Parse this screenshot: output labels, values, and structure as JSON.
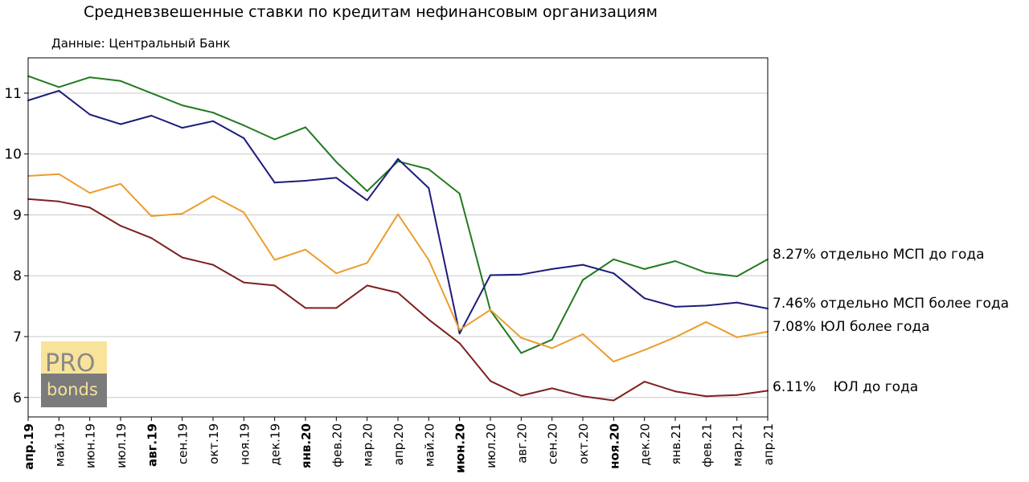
{
  "title": "Средневзвешенные ставки по кредитам нефинансовым организациям",
  "subtitle": "Данные: Центральный Банк",
  "logo": {
    "line1": "PRO",
    "line2": "bonds"
  },
  "chart_data": {
    "type": "line",
    "categories": [
      "апр.19",
      "май.19",
      "июн.19",
      "июл.19",
      "авг.19",
      "сен.19",
      "окт.19",
      "ноя.19",
      "дек.19",
      "янв.20",
      "фев.20",
      "мар.20",
      "апр.20",
      "май.20",
      "июн.20",
      "июл.20",
      "авг.20",
      "сен.20",
      "окт.20",
      "ноя.20",
      "дек.20",
      "янв.21",
      "фев.21",
      "мар.21",
      "апр.21"
    ],
    "bold_categories": [
      "апр.19",
      "авг.19",
      "янв.20",
      "июн.20",
      "ноя.20"
    ],
    "yticks": [
      6,
      7,
      8,
      9,
      10,
      11
    ],
    "ylim": [
      5.68,
      11.58
    ],
    "grid": true,
    "series": [
      {
        "name": "отдельно МСП до года",
        "end_label": "8.27% отдельно МСП до года",
        "color": "#217a21",
        "values": [
          11.28,
          11.1,
          11.26,
          11.2,
          11.0,
          10.8,
          10.68,
          10.47,
          10.24,
          10.44,
          9.87,
          9.39,
          9.88,
          9.75,
          9.35,
          7.43,
          6.73,
          6.95,
          7.93,
          8.27,
          8.11,
          8.24,
          8.05,
          7.99,
          8.27
        ]
      },
      {
        "name": "отдельно МСП более года",
        "end_label": "7.46% отдельно МСП более года",
        "color": "#1c1c7a",
        "values": [
          10.88,
          11.04,
          10.65,
          10.49,
          10.63,
          10.43,
          10.54,
          10.26,
          9.53,
          9.56,
          9.61,
          9.24,
          9.92,
          9.44,
          7.05,
          8.01,
          8.02,
          8.11,
          8.18,
          8.04,
          7.63,
          7.49,
          7.51,
          7.56,
          7.46
        ]
      },
      {
        "name": "ЮЛ более года",
        "end_label": "7.08% ЮЛ более года",
        "color": "#eb9d2d",
        "values": [
          9.64,
          9.67,
          9.36,
          9.51,
          8.98,
          9.02,
          9.31,
          9.04,
          8.26,
          8.43,
          8.04,
          8.21,
          9.01,
          8.26,
          7.11,
          7.44,
          6.98,
          6.81,
          7.04,
          6.59,
          6.78,
          6.99,
          7.24,
          6.99,
          7.08
        ]
      },
      {
        "name": "ЮЛ до года",
        "end_label": "6.11%    ЮЛ до года",
        "color": "#7e2020",
        "values": [
          9.26,
          9.22,
          9.12,
          8.82,
          8.62,
          8.3,
          8.18,
          7.89,
          7.84,
          7.47,
          7.47,
          7.84,
          7.72,
          7.28,
          6.89,
          6.27,
          6.03,
          6.15,
          6.02,
          5.95,
          6.26,
          6.1,
          6.02,
          6.04,
          6.11
        ]
      }
    ]
  }
}
